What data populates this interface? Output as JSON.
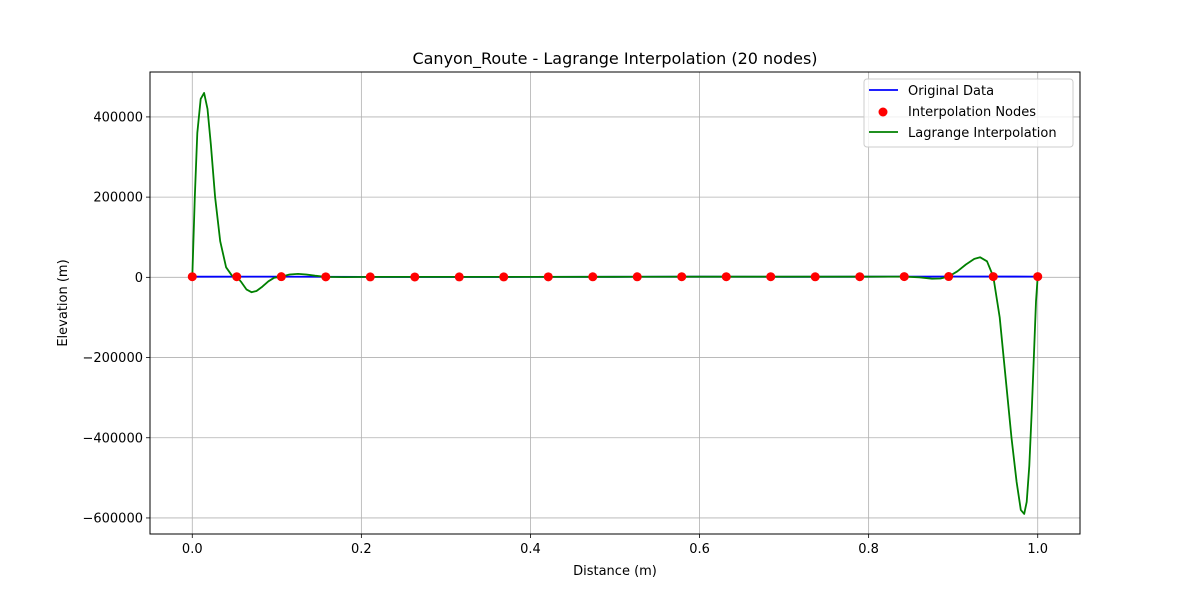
{
  "chart_data": {
    "type": "line",
    "title": "Canyon_Route - Lagrange Interpolation (20 nodes)",
    "xlabel": "Distance (m)",
    "ylabel": "Elevation (m)",
    "xlim": [
      -0.05,
      1.05
    ],
    "ylim": [
      -640000,
      512000
    ],
    "grid": true,
    "legend_position": "top-right",
    "x_ticks": [
      0.0,
      0.2,
      0.4,
      0.6,
      0.8,
      1.0
    ],
    "x_tick_labels": [
      "0.0",
      "0.2",
      "0.4",
      "0.6",
      "0.8",
      "1.0"
    ],
    "y_ticks": [
      400000,
      200000,
      0,
      -200000,
      -400000,
      -600000
    ],
    "y_tick_labels": [
      "400000",
      "200000",
      "0",
      "−200000",
      "−400000",
      "−600000"
    ],
    "series": [
      {
        "name": "Original Data",
        "style": "line",
        "color": "#0000ff",
        "x": [
          0.0,
          0.1,
          0.2,
          0.3,
          0.4,
          0.5,
          0.6,
          0.7,
          0.8,
          0.9,
          1.0
        ],
        "y": [
          1500,
          1800,
          1200,
          900,
          1100,
          1300,
          1600,
          1400,
          1700,
          2000,
          1800
        ]
      },
      {
        "name": "Interpolation Nodes",
        "style": "scatter",
        "color": "#ff0000",
        "x": [
          0.0,
          0.0526,
          0.1053,
          0.1579,
          0.2105,
          0.2632,
          0.3158,
          0.3684,
          0.4211,
          0.4737,
          0.5263,
          0.5789,
          0.6316,
          0.6842,
          0.7368,
          0.7895,
          0.8421,
          0.8947,
          0.9474,
          1.0
        ],
        "y": [
          1500,
          1600,
          1700,
          1200,
          1100,
          900,
          1000,
          1100,
          1200,
          1300,
          1400,
          1500,
          1600,
          1500,
          1400,
          1600,
          1800,
          2000,
          1900,
          1800
        ]
      },
      {
        "name": "Lagrange Interpolation",
        "style": "line",
        "color": "#008000",
        "x": [
          0.0,
          0.003,
          0.006,
          0.01,
          0.014,
          0.018,
          0.022,
          0.027,
          0.033,
          0.04,
          0.047,
          0.0526,
          0.058,
          0.064,
          0.07,
          0.076,
          0.083,
          0.09,
          0.097,
          0.1053,
          0.115,
          0.125,
          0.135,
          0.145,
          0.1579,
          0.18,
          0.2105,
          0.3,
          0.4,
          0.5,
          0.6,
          0.7,
          0.78,
          0.8421,
          0.86,
          0.875,
          0.885,
          0.8947,
          0.905,
          0.915,
          0.925,
          0.932,
          0.94,
          0.9474,
          0.955,
          0.962,
          0.969,
          0.975,
          0.98,
          0.984,
          0.987,
          0.99,
          0.993,
          0.996,
          0.998,
          1.0
        ],
        "y": [
          1500,
          200000,
          360000,
          445000,
          460000,
          420000,
          330000,
          200000,
          90000,
          25000,
          4000,
          1600,
          -12000,
          -30000,
          -37000,
          -34000,
          -23000,
          -10000,
          -1000,
          1700,
          7000,
          8500,
          7000,
          4000,
          1200,
          500,
          1100,
          1000,
          1200,
          1400,
          1500,
          1500,
          1500,
          1800,
          100,
          -3500,
          -3000,
          2000,
          15000,
          32000,
          46000,
          50000,
          40000,
          1900,
          -100000,
          -250000,
          -400000,
          -510000,
          -580000,
          -590000,
          -560000,
          -470000,
          -330000,
          -170000,
          -60000,
          1800
        ]
      }
    ]
  }
}
